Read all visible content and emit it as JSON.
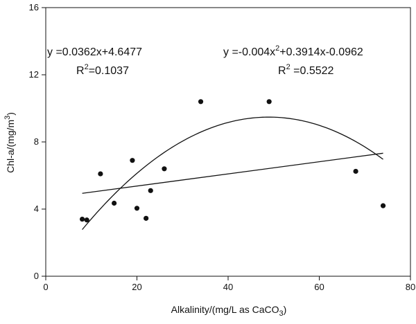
{
  "chart_data": {
    "type": "scatter",
    "xlabel": {
      "main": "Alkalinity/(mg/L as CaCO",
      "sub": "3",
      "end": ")"
    },
    "ylabel": {
      "main": "Chl-a/(mg/m",
      "sup": "3",
      "end": ")"
    },
    "xlim": [
      0,
      80
    ],
    "ylim": [
      0,
      16
    ],
    "xticks": [
      0,
      20,
      40,
      60,
      80
    ],
    "yticks": [
      0,
      4,
      8,
      12,
      16
    ],
    "points": [
      {
        "x": 8,
        "y": 3.4
      },
      {
        "x": 9,
        "y": 3.35
      },
      {
        "x": 12,
        "y": 6.1
      },
      {
        "x": 15,
        "y": 4.35
      },
      {
        "x": 19,
        "y": 6.9
      },
      {
        "x": 20,
        "y": 4.05
      },
      {
        "x": 22,
        "y": 3.45
      },
      {
        "x": 23,
        "y": 5.1
      },
      {
        "x": 26,
        "y": 6.4
      },
      {
        "x": 34,
        "y": 10.4
      },
      {
        "x": 49,
        "y": 10.4
      },
      {
        "x": 68,
        "y": 6.25
      },
      {
        "x": 74,
        "y": 4.2
      }
    ],
    "fits": [
      {
        "kind": "linear",
        "coeffs": [
          4.6477,
          0.0362
        ],
        "xrange": [
          8,
          74
        ]
      },
      {
        "kind": "quadratic",
        "coeffs": [
          -0.0962,
          0.3914,
          -0.004
        ],
        "xrange": [
          8,
          74
        ]
      }
    ],
    "annotations": {
      "linear_eq": "y =0.0362x+4.6477",
      "linear_r2_label": "R",
      "linear_r2_sup": "2",
      "linear_r2_value": "=0.1037",
      "quad_eq_a": "y =-0.004x",
      "quad_eq_sup": "2",
      "quad_eq_b": "+0.3914x-0.0962",
      "quad_r2_label": "R",
      "quad_r2_sup": "2",
      "quad_r2_value": " =0.5522"
    },
    "grid": false
  }
}
